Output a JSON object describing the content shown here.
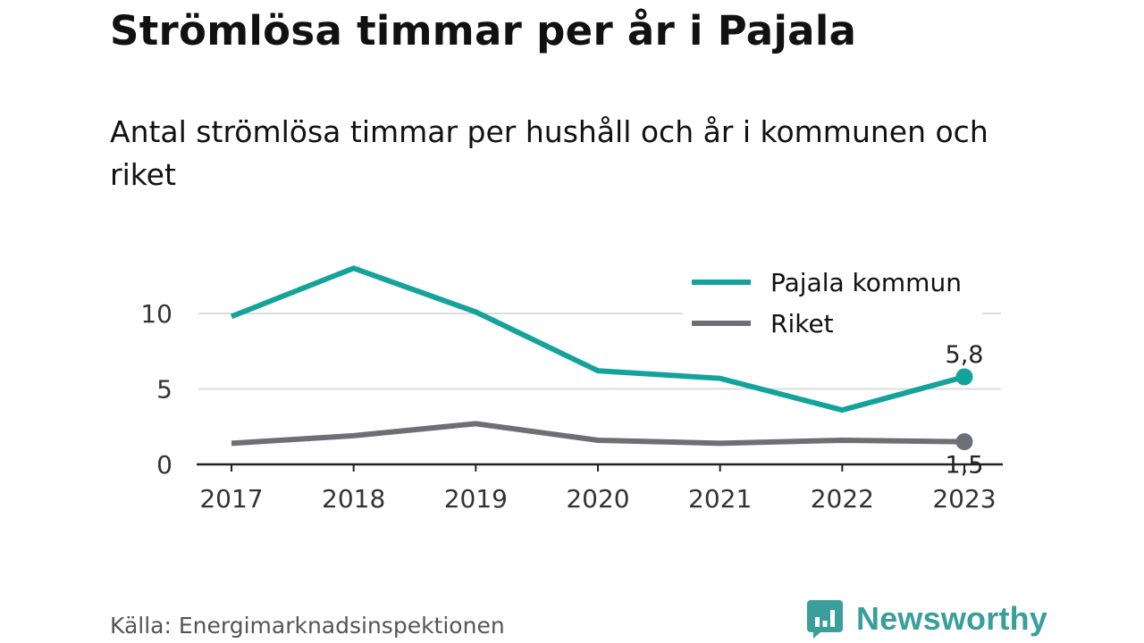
{
  "header": {
    "title": "Strömlösa timmar per år i Pajala",
    "subtitle": "Antal strömlösa timmar per hushåll och år i kommunen och riket"
  },
  "chart_data": {
    "type": "line",
    "title": "Strömlösa timmar per år i Pajala",
    "subtitle": "Antal strömlösa timmar per hushåll och år i kommunen och riket",
    "xlabel": "",
    "ylabel": "",
    "x": [
      "2017",
      "2018",
      "2019",
      "2020",
      "2021",
      "2022",
      "2023"
    ],
    "y_ticks": [
      "0",
      "5",
      "10"
    ],
    "ylim": [
      0,
      13
    ],
    "grid": true,
    "legend_position": "top-right",
    "series": [
      {
        "name": "Pajala kommun",
        "color": "#14a39a",
        "values": [
          9.8,
          13.0,
          10.1,
          6.2,
          5.7,
          3.6,
          5.8
        ],
        "end_label": "5,8"
      },
      {
        "name": "Riket",
        "color": "#6e6e76",
        "values": [
          1.4,
          1.9,
          2.7,
          1.6,
          1.4,
          1.6,
          1.5
        ],
        "end_label": "1,5"
      }
    ]
  },
  "footer": {
    "source": "Källa: Energimarknadsinspektionen",
    "brand": "Newsworthy",
    "brand_color": "#3a9f9a",
    "brand_icon": "bar-chart-speech-bubble-icon"
  }
}
